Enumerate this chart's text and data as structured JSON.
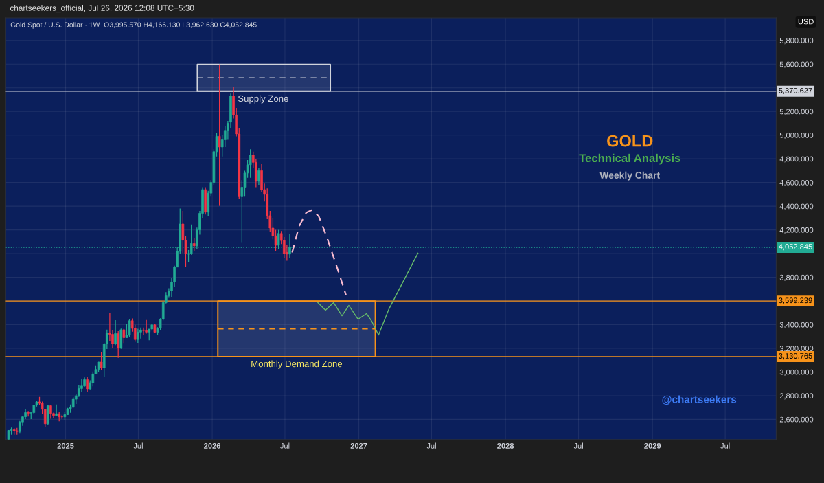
{
  "chart_data": {
    "type": "candlestick",
    "title": "Gold Spot / U.S. Dollar · 1W",
    "subtitle": "O3,995.570 H4,166.130 L3,962.630 C4,052.845",
    "x": [
      "2024-08-12",
      "2024-08-19",
      "2024-08-26",
      "2024-09-02",
      "2024-09-09",
      "2024-09-16",
      "2024-09-23",
      "2024-09-30",
      "2024-10-07",
      "2024-10-14",
      "2024-10-21",
      "2024-10-28",
      "2024-11-04",
      "2024-11-11",
      "2024-11-18",
      "2024-11-25",
      "2024-12-02",
      "2024-12-09",
      "2024-12-16",
      "2024-12-23",
      "2024-12-30",
      "2025-01-06",
      "2025-01-13",
      "2025-01-20",
      "2025-01-27",
      "2025-02-03",
      "2025-02-10",
      "2025-02-17",
      "2025-02-24",
      "2025-03-03",
      "2025-03-10",
      "2025-03-17",
      "2025-03-24",
      "2025-03-31",
      "2025-04-07",
      "2025-04-14",
      "2025-04-21",
      "2025-04-28",
      "2025-05-05",
      "2025-05-12",
      "2025-05-19",
      "2025-05-26",
      "2025-06-02",
      "2025-06-09",
      "2025-06-16",
      "2025-06-23",
      "2025-06-30",
      "2025-07-07",
      "2025-07-14",
      "2025-07-21",
      "2025-07-28",
      "2025-08-04",
      "2025-08-11",
      "2025-08-18",
      "2025-08-25",
      "2025-09-01",
      "2025-09-08",
      "2025-09-15",
      "2025-09-22",
      "2025-09-29",
      "2025-10-06",
      "2025-10-13",
      "2025-10-20",
      "2025-10-27",
      "2025-11-03",
      "2025-11-10",
      "2025-11-17",
      "2025-11-24",
      "2025-12-01",
      "2025-12-08",
      "2025-12-15",
      "2025-12-22",
      "2025-12-29",
      "2026-01-05",
      "2026-01-12",
      "2026-01-19",
      "2026-01-26",
      "2026-02-02",
      "2026-02-09",
      "2026-02-16",
      "2026-02-23",
      "2026-03-02",
      "2026-03-09",
      "2026-03-16",
      "2026-03-23",
      "2026-03-30",
      "2026-04-06",
      "2026-04-13",
      "2026-04-20",
      "2026-04-27",
      "2026-05-04",
      "2026-05-11",
      "2026-05-18",
      "2026-05-25",
      "2026-06-01",
      "2026-06-08",
      "2026-06-15",
      "2026-06-22",
      "2026-06-29",
      "2026-07-06",
      "2026-07-13"
    ],
    "ohlc": [
      [
        2431,
        2509,
        2430,
        2507
      ],
      [
        2507,
        2531,
        2470,
        2512
      ],
      [
        2512,
        2525,
        2471,
        2503
      ],
      [
        2503,
        2529,
        2471,
        2497
      ],
      [
        2497,
        2586,
        2485,
        2578
      ],
      [
        2578,
        2625,
        2546,
        2622
      ],
      [
        2622,
        2685,
        2603,
        2658
      ],
      [
        2658,
        2670,
        2624,
        2653
      ],
      [
        2653,
        2658,
        2603,
        2657
      ],
      [
        2657,
        2722,
        2644,
        2721
      ],
      [
        2721,
        2758,
        2708,
        2747
      ],
      [
        2747,
        2790,
        2724,
        2736
      ],
      [
        2736,
        2750,
        2643,
        2685
      ],
      [
        2685,
        2690,
        2536,
        2563
      ],
      [
        2563,
        2721,
        2550,
        2715
      ],
      [
        2715,
        2722,
        2605,
        2650
      ],
      [
        2650,
        2657,
        2614,
        2633
      ],
      [
        2633,
        2726,
        2632,
        2648
      ],
      [
        2648,
        2664,
        2583,
        2622
      ],
      [
        2622,
        2638,
        2603,
        2621
      ],
      [
        2621,
        2665,
        2597,
        2640
      ],
      [
        2640,
        2697,
        2637,
        2690
      ],
      [
        2690,
        2725,
        2656,
        2702
      ],
      [
        2702,
        2786,
        2700,
        2770
      ],
      [
        2770,
        2817,
        2730,
        2800
      ],
      [
        2800,
        2886,
        2790,
        2861
      ],
      [
        2861,
        2942,
        2832,
        2882
      ],
      [
        2882,
        2955,
        2877,
        2936
      ],
      [
        2936,
        2956,
        2832,
        2858
      ],
      [
        2858,
        2930,
        2853,
        2910
      ],
      [
        2910,
        3004,
        2880,
        2984
      ],
      [
        2984,
        3057,
        2982,
        3022
      ],
      [
        3022,
        3086,
        3000,
        3084
      ],
      [
        3084,
        3168,
        3015,
        3037
      ],
      [
        3037,
        3245,
        2957,
        3237
      ],
      [
        3237,
        3358,
        3194,
        3327
      ],
      [
        3327,
        3500,
        3260,
        3319
      ],
      [
        3319,
        3352,
        3202,
        3240
      ],
      [
        3240,
        3438,
        3228,
        3325
      ],
      [
        3325,
        3345,
        3120,
        3202
      ],
      [
        3202,
        3366,
        3195,
        3357
      ],
      [
        3357,
        3365,
        3245,
        3290
      ],
      [
        3290,
        3403,
        3290,
        3310
      ],
      [
        3310,
        3446,
        3293,
        3433
      ],
      [
        3433,
        3452,
        3340,
        3368
      ],
      [
        3368,
        3398,
        3255,
        3274
      ],
      [
        3274,
        3365,
        3247,
        3337
      ],
      [
        3337,
        3375,
        3283,
        3355
      ],
      [
        3355,
        3375,
        3310,
        3350
      ],
      [
        3350,
        3439,
        3325,
        3337
      ],
      [
        3337,
        3363,
        3268,
        3363
      ],
      [
        3363,
        3409,
        3349,
        3398
      ],
      [
        3398,
        3404,
        3330,
        3336
      ],
      [
        3336,
        3379,
        3311,
        3371
      ],
      [
        3371,
        3453,
        3351,
        3447
      ],
      [
        3447,
        3600,
        3437,
        3586
      ],
      [
        3586,
        3674,
        3578,
        3643
      ],
      [
        3643,
        3707,
        3627,
        3685
      ],
      [
        3685,
        3791,
        3630,
        3760
      ],
      [
        3760,
        3897,
        3720,
        3886
      ],
      [
        3886,
        4059,
        3884,
        4018
      ],
      [
        4018,
        4380,
        4000,
        4250
      ],
      [
        4250,
        4360,
        4004,
        4113
      ],
      [
        4113,
        4150,
        3886,
        4000
      ],
      [
        3995,
        4030,
        3930,
        4000
      ],
      [
        4000,
        4245,
        3990,
        4085
      ],
      [
        4085,
        4130,
        4020,
        4065
      ],
      [
        4065,
        4220,
        4040,
        4200
      ],
      [
        4200,
        4360,
        4160,
        4340
      ],
      [
        4340,
        4560,
        4300,
        4540
      ],
      [
        4540,
        4560,
        4330,
        4350
      ],
      [
        4350,
        4530,
        4320,
        4510
      ],
      [
        4510,
        4620,
        4480,
        4600
      ],
      [
        4600,
        4880,
        4580,
        4860
      ],
      [
        4860,
        5020,
        4820,
        4990
      ],
      [
        4990,
        5597,
        4403,
        4900
      ],
      [
        4900,
        5000,
        4820,
        4960
      ],
      [
        4960,
        5080,
        4900,
        5040
      ],
      [
        5040,
        5120,
        4960,
        5100
      ],
      [
        5110,
        5350,
        5060,
        5330
      ],
      [
        5330,
        5406,
        5140,
        5170
      ],
      [
        5170,
        5230,
        4990,
        5010
      ],
      [
        5010,
        5060,
        4460,
        4480
      ],
      [
        4480,
        4620,
        4096,
        4560
      ],
      [
        4560,
        4700,
        4480,
        4680
      ],
      [
        4680,
        4790,
        4640,
        4750
      ],
      [
        4750,
        4880,
        4640,
        4830
      ],
      [
        4830,
        4860,
        4720,
        4770
      ],
      [
        4770,
        4800,
        4560,
        4610
      ],
      [
        4610,
        4720,
        4580,
        4700
      ],
      [
        4700,
        4760,
        4520,
        4540
      ],
      [
        4540,
        4590,
        4440,
        4500
      ],
      [
        4500,
        4550,
        4290,
        4320
      ],
      [
        4320,
        4360,
        4180,
        4215
      ],
      [
        4215,
        4300,
        4120,
        4150
      ],
      [
        4150,
        4200,
        4020,
        4070
      ],
      [
        4070,
        4200,
        4040,
        4170
      ],
      [
        4170,
        4190,
        4080,
        4110
      ],
      [
        4110,
        4140,
        3960,
        4000
      ],
      [
        4010,
        4070,
        3940,
        3995.57
      ],
      [
        3995.57,
        4166.13,
        3962.63,
        4052.845
      ]
    ],
    "colors": [
      "#22ab94",
      "#22ab94",
      "#f23645",
      "#f23645",
      "#22ab94",
      "#22ab94",
      "#22ab94",
      "#f23645",
      "#22ab94",
      "#22ab94",
      "#22ab94",
      "#f23645",
      "#f23645",
      "#f23645",
      "#22ab94",
      "#f23645",
      "#f23645",
      "#22ab94",
      "#f23645",
      "#f23645",
      "#22ab94",
      "#22ab94",
      "#22ab94",
      "#22ab94",
      "#22ab94",
      "#22ab94",
      "#22ab94",
      "#22ab94",
      "#f23645",
      "#22ab94",
      "#22ab94",
      "#22ab94",
      "#22ab94",
      "#f23645",
      "#22ab94",
      "#22ab94",
      "#f23645",
      "#f23645",
      "#22ab94",
      "#f23645",
      "#22ab94",
      "#f23645",
      "#22ab94",
      "#22ab94",
      "#f23645",
      "#f23645",
      "#22ab94",
      "#22ab94",
      "#f23645",
      "#f23645",
      "#22ab94",
      "#22ab94",
      "#f23645",
      "#22ab94",
      "#22ab94",
      "#22ab94",
      "#22ab94",
      "#22ab94",
      "#22ab94",
      "#22ab94",
      "#22ab94",
      "#22ab94",
      "#f23645",
      "#f23645",
      "#22ab94",
      "#22ab94",
      "#f23645",
      "#22ab94",
      "#22ab94",
      "#22ab94",
      "#f23645",
      "#22ab94",
      "#22ab94",
      "#22ab94",
      "#22ab94",
      "#f23645",
      "#22ab94",
      "#22ab94",
      "#22ab94",
      "#22ab94",
      "#f23645",
      "#f23645",
      "#f23645",
      "#22ab94",
      "#22ab94",
      "#22ab94",
      "#22ab94",
      "#f23645",
      "#f23645",
      "#22ab94",
      "#f23645",
      "#f23645",
      "#f23645",
      "#f23645",
      "#f23645",
      "#f23645",
      "#22ab94",
      "#f23645",
      "#f23645",
      "#f23645",
      "#22ab94"
    ],
    "series": [
      {
        "type": "line",
        "color": "#d1d4dc",
        "line_style": "dashed",
        "x": [
          "2025-11-25",
          "2026-10-22"
        ],
        "values": [
          5484,
          5484
        ],
        "lower": [
          5370.627,
          5370.627
        ],
        "upper": [
          5597,
          5597
        ]
      },
      {
        "type": "line",
        "color": "#f7931a",
        "line_style": "dashed",
        "x": [
          "2026-01-15",
          "2027-02-11"
        ],
        "values": [
          3365,
          3365
        ],
        "lower": [
          3130.765,
          3130.765
        ],
        "upper": [
          3599.239,
          3599.239
        ]
      },
      {
        "type": "line",
        "color": "#f8bbd0",
        "line_style": "dashed",
        "x": [
          "2026-07-19",
          "2026-08-05",
          "2026-08-23",
          "2026-09-06",
          "2026-09-23",
          "2026-10-13",
          "2026-11-08",
          "2026-11-30"
        ],
        "values": [
          4009,
          4229,
          4345,
          4368,
          4316,
          4142,
          3881,
          3649
        ]
      },
      {
        "type": "line",
        "color": "#66bb6a",
        "line_style": "solid",
        "x": [
          "2026-09-21",
          "2026-10-10",
          "2026-10-30",
          "2026-11-20",
          "2026-12-07",
          "2026-12-30",
          "2027-01-20",
          "2027-02-02",
          "2027-02-19",
          "2027-03-17",
          "2027-05-28"
        ],
        "values": [
          3586,
          3522,
          3586,
          3475,
          3562,
          3446,
          3493,
          3429,
          3313,
          3533,
          4003
        ]
      }
    ],
    "xlim": [
      "2024-08-05",
      "2029-11-05"
    ],
    "xticks": [
      {
        "value": "2025-01-01",
        "label": "2025"
      },
      {
        "value": "2025-07-01",
        "label": "Jul"
      },
      {
        "value": "2026-01-01",
        "label": "2026"
      },
      {
        "value": "2026-07-01",
        "label": "Jul"
      },
      {
        "value": "2027-01-01",
        "label": "2027"
      },
      {
        "value": "2027-07-01",
        "label": "Jul"
      },
      {
        "value": "2028-01-01",
        "label": "2028"
      },
      {
        "value": "2028-07-01",
        "label": "Jul"
      },
      {
        "value": "2029-01-01",
        "label": "2029"
      },
      {
        "value": "2029-07-01",
        "label": "Jul"
      }
    ],
    "ylim": [
      2430,
      5990
    ],
    "yticks": [
      {
        "value": 2600,
        "label": "2,600.000"
      },
      {
        "value": 2800,
        "label": "2,800.000"
      },
      {
        "value": 3000,
        "label": "3,000.000"
      },
      {
        "value": 3200,
        "label": "3,200.000"
      },
      {
        "value": 3400,
        "label": "3,400.000"
      },
      {
        "value": 3600,
        "label": null
      },
      {
        "value": 3800,
        "label": "3,800.000"
      },
      {
        "value": 4000,
        "label": null
      },
      {
        "value": 4200,
        "label": "4,200.000"
      },
      {
        "value": 4400,
        "label": "4,400.000"
      },
      {
        "value": 4600,
        "label": "4,600.000"
      },
      {
        "value": 4800,
        "label": "4,800.000"
      },
      {
        "value": 5000,
        "label": "5,000.000"
      },
      {
        "value": 5200,
        "label": "5,200.000"
      },
      {
        "value": 5400,
        "label": null
      },
      {
        "value": 5600,
        "label": "5,600.000"
      },
      {
        "value": 5800,
        "label": "5,800.000"
      }
    ],
    "grid": true,
    "ref_lines": [
      {
        "axis": "y",
        "value": 5370.627,
        "label": "5,370.627",
        "color": "#d1d4dc"
      },
      {
        "axis": "y",
        "value": 3599.239,
        "label": "3,599.239",
        "color": "#f7931a"
      },
      {
        "axis": "y",
        "value": 3130.765,
        "label": "3,130.765",
        "color": "#f7931a"
      },
      {
        "axis": "y",
        "value": 4052.845,
        "label": "4,052.845",
        "color": "#22ab94",
        "line_style": "dotted"
      }
    ],
    "annotations": [
      "chartseekers_official, Jul 26, 2026 12:08 UTC+5:30",
      "USD",
      "GOLD",
      "Technical Analysis",
      "Weekly Chart",
      "@chartseekers",
      {
        "text": "Supply Zone",
        "x": "2026-05-08",
        "y": 5370.627
      },
      {
        "text": "Monthly Demand Zone",
        "x": "2026-07-30",
        "y": 3130.765
      }
    ]
  }
}
